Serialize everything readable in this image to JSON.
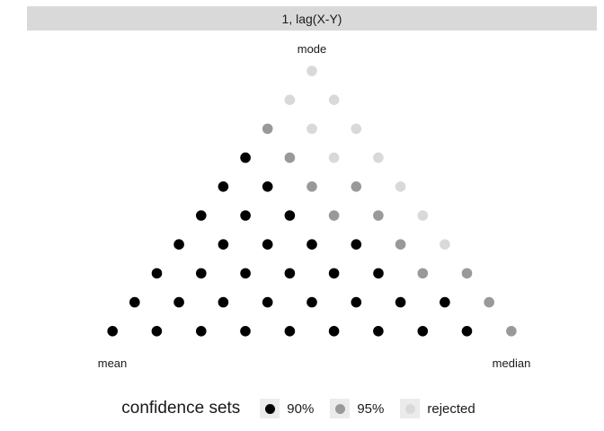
{
  "panel": {
    "strip_label": "1, lag(X-Y)"
  },
  "chart_data": {
    "type": "scatter",
    "description_note": "ternary triangle grid; row 0 is the top (mode) vertex, position 0 is the left end of each row",
    "vertex_labels": {
      "top": "mode",
      "left": "mean",
      "right": "median"
    },
    "levels": [
      "90%",
      "95%",
      "rejected"
    ],
    "colors": {
      "90%": "#000000",
      "95%": "#999999",
      "rejected": "#d9d9d9"
    },
    "rows": [
      [
        "rejected"
      ],
      [
        "rejected",
        "rejected"
      ],
      [
        "95%",
        "rejected",
        "rejected"
      ],
      [
        "90%",
        "95%",
        "rejected",
        "rejected"
      ],
      [
        "90%",
        "90%",
        "95%",
        "95%",
        "rejected"
      ],
      [
        "90%",
        "90%",
        "90%",
        "95%",
        "95%",
        "rejected"
      ],
      [
        "90%",
        "90%",
        "90%",
        "90%",
        "90%",
        "95%",
        "rejected"
      ],
      [
        "90%",
        "90%",
        "90%",
        "90%",
        "90%",
        "90%",
        "95%",
        "95%"
      ],
      [
        "90%",
        "90%",
        "90%",
        "90%",
        "90%",
        "90%",
        "90%",
        "90%",
        "95%"
      ],
      [
        "90%",
        "90%",
        "90%",
        "90%",
        "90%",
        "90%",
        "90%",
        "90%",
        "90%",
        "95%"
      ]
    ]
  },
  "legend": {
    "title": "confidence sets",
    "items": [
      {
        "label": "90%",
        "color": "#000000"
      },
      {
        "label": "95%",
        "color": "#999999"
      },
      {
        "label": "rejected",
        "color": "#d9d9d9"
      }
    ]
  }
}
